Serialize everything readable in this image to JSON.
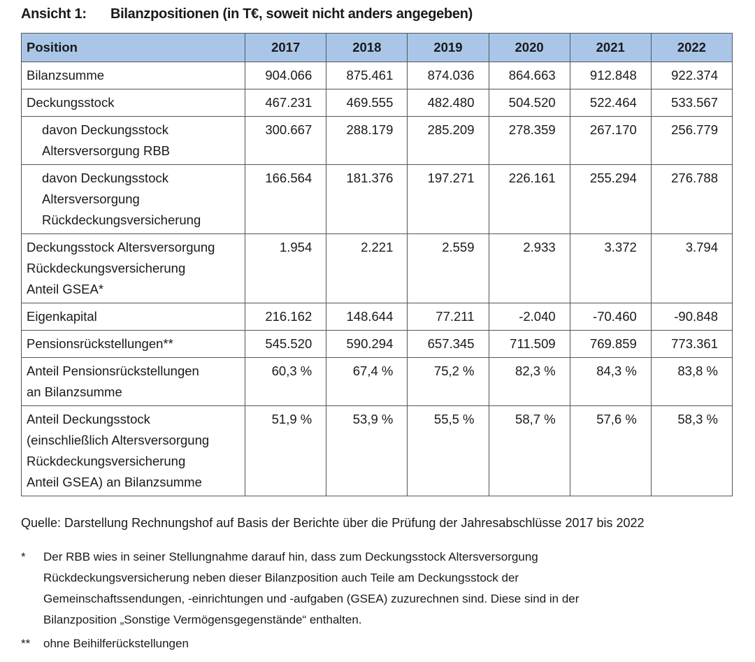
{
  "title": {
    "label": "Ansicht 1:",
    "text": "Bilanzpositionen (in T€, soweit nicht anders angegeben)"
  },
  "table": {
    "header": [
      "Position",
      "2017",
      "2018",
      "2019",
      "2020",
      "2021",
      "2022"
    ],
    "rows": [
      {
        "label": [
          "Bilanzsumme"
        ],
        "indent": false,
        "values": [
          "904.066",
          "875.461",
          "874.036",
          "864.663",
          "912.848",
          "922.374"
        ]
      },
      {
        "label": [
          "Deckungsstock"
        ],
        "indent": false,
        "values": [
          "467.231",
          "469.555",
          "482.480",
          "504.520",
          "522.464",
          "533.567"
        ]
      },
      {
        "label": [
          "davon Deckungsstock",
          "Altersversorgung RBB"
        ],
        "indent": true,
        "values": [
          "300.667",
          "288.179",
          "285.209",
          "278.359",
          "267.170",
          "256.779"
        ]
      },
      {
        "label": [
          "davon Deckungsstock",
          "Altersversorgung",
          "Rückdeckungsversicherung"
        ],
        "indent": true,
        "values": [
          "166.564",
          "181.376",
          "197.271",
          "226.161",
          "255.294",
          "276.788"
        ]
      },
      {
        "label": [
          "Deckungsstock Altersversorgung",
          "Rückdeckungsversicherung",
          "Anteil GSEA*"
        ],
        "indent": false,
        "values": [
          "1.954",
          "2.221",
          "2.559",
          "2.933",
          "3.372",
          "3.794"
        ]
      },
      {
        "label": [
          "Eigenkapital"
        ],
        "indent": false,
        "values": [
          "216.162",
          "148.644",
          "77.211",
          "-2.040",
          "-70.460",
          "-90.848"
        ]
      },
      {
        "label": [
          "Pensionsrückstellungen**"
        ],
        "indent": false,
        "values": [
          "545.520",
          "590.294",
          "657.345",
          "711.509",
          "769.859",
          "773.361"
        ]
      },
      {
        "label": [
          "Anteil Pensionsrückstellungen",
          "an Bilanzsumme"
        ],
        "indent": false,
        "values": [
          "60,3 %",
          "67,4 %",
          "75,2 %",
          "82,3 %",
          "84,3 %",
          "83,8 %"
        ]
      },
      {
        "label": [
          "Anteil Deckungsstock",
          "(einschließlich Altersversorgung",
          "Rückdeckungsversicherung",
          "Anteil GSEA) an Bilanzsumme"
        ],
        "indent": false,
        "values": [
          "51,9 %",
          "53,9 %",
          "55,5 %",
          "58,7 %",
          "57,6 %",
          "58,3 %"
        ]
      }
    ]
  },
  "source": "Quelle: Darstellung Rechnungshof auf Basis der Berichte über die Prüfung der Jahresabschlüsse 2017 bis 2022",
  "footnotes": [
    {
      "marker": "*",
      "lines": [
        "Der RBB wies in seiner Stellungnahme darauf hin, dass zum Deckungsstock Altersversorgung",
        "Rückdeckungsversicherung neben dieser Bilanzposition auch Teile am Deckungsstock der",
        "Gemeinschaftssendungen, -einrichtungen und -aufgaben (GSEA) zuzurechnen sind. Diese sind in der",
        "Bilanzposition „Sonstige Vermögensgegenstände“ enthalten."
      ]
    },
    {
      "marker": "**",
      "lines": [
        "ohne Beihilferückstellungen"
      ]
    }
  ],
  "colors": {
    "header_bg": "#a9c6e8",
    "border": "#555555"
  }
}
